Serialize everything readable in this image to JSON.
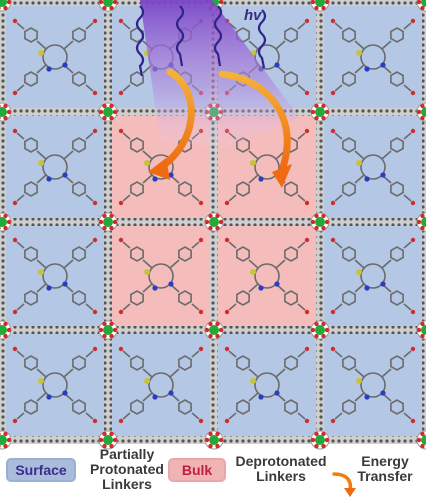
{
  "labels": {
    "light": "hv",
    "surface_badge": "Surface",
    "surface_desc": "Partially Protonated Linkers",
    "bulk_badge": "Bulk",
    "bulk_desc": "Deprotonated Linkers",
    "energy_desc": "Energy Transfer"
  },
  "colors": {
    "surface_cell": "#b4c7e4",
    "bulk_cell": "#f5bcbc",
    "light_purple": "#6a3fb0",
    "light_gradient_top": "#7a44c8",
    "wave": "#2f2488",
    "energy_arrow": "#f07c12",
    "node_green": "#1faa3a",
    "node_red": "#d32b2b",
    "linker_gray": "#6b6b6b",
    "sulfur": "#c9c33a",
    "nitrogen": "#2b3cc4"
  },
  "grid": {
    "rows": 4,
    "cols": 4,
    "bulk_cells": [
      "1-1",
      "1-2",
      "2-1",
      "2-2"
    ]
  }
}
